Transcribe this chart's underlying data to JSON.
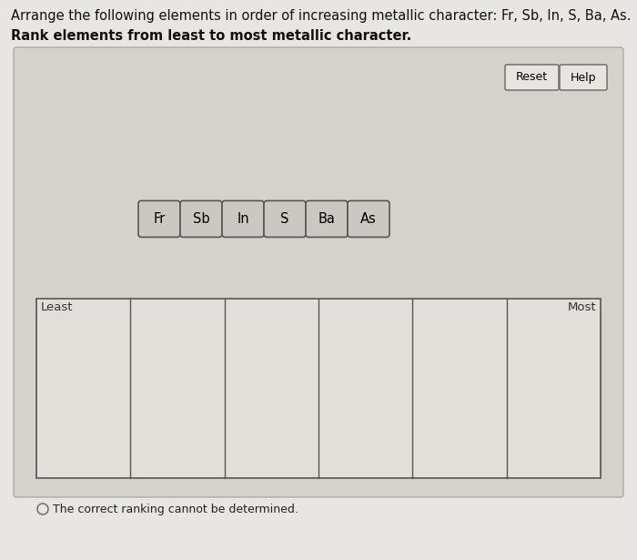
{
  "title_line1": "Arrange the following elements in order of increasing metallic character: Fr, Sb, In, S, Ba, As.",
  "title_line2": "Rank elements from least to most metallic character.",
  "fig_bg": "#e8e6e2",
  "panel_bg": "#d5d2cc",
  "panel_inner_bg": "#dddad5",
  "elements": [
    "Fr",
    "Sb",
    "In",
    "S",
    "Ba",
    "As"
  ],
  "element_box_bg": "#cbc7c1",
  "element_border": "#555555",
  "grid_bg": "#e2dfda",
  "grid_border": "#555555",
  "ranking_slots": 6,
  "least_label": "Least",
  "most_label": "Most",
  "checkbox_text": "The correct ranking cannot be determined.",
  "reset_btn": "Reset",
  "help_btn": "Help",
  "font_size_title": 10.5,
  "font_size_bold": 10.5,
  "btn_bg": "#e8e5e0",
  "btn_border": "#666666"
}
